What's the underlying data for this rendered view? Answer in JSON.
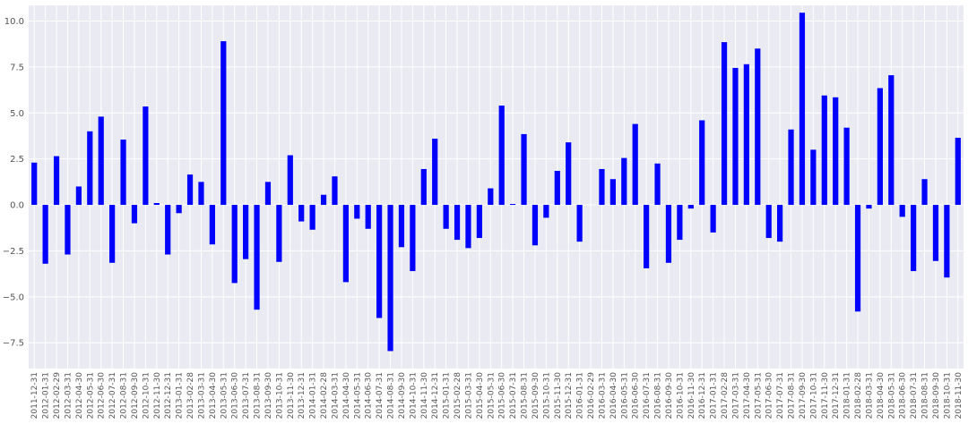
{
  "chart_data": {
    "type": "bar",
    "title": "",
    "xlabel": "",
    "ylabel": "",
    "ylim": [
      -8.9,
      10.85
    ],
    "yticks": [
      -7.5,
      -5.0,
      -2.5,
      0.0,
      2.5,
      5.0,
      7.5,
      10.0
    ],
    "ytick_labels": [
      "−7.5",
      "−5.0",
      "−2.5",
      "0.0",
      "2.5",
      "5.0",
      "7.5",
      "10.0"
    ],
    "grid": true,
    "colors": {
      "bar": "#0000ff",
      "background": "#eaeaf2",
      "grid": "#ffffff"
    },
    "categories": [
      "2011-12-31",
      "2012-01-31",
      "2012-02-29",
      "2012-03-31",
      "2012-04-30",
      "2012-05-31",
      "2012-06-30",
      "2012-07-31",
      "2012-08-31",
      "2012-09-30",
      "2012-10-31",
      "2012-11-30",
      "2012-12-31",
      "2013-01-31",
      "2013-02-28",
      "2013-03-31",
      "2013-04-30",
      "2013-05-31",
      "2013-06-30",
      "2013-07-31",
      "2013-08-31",
      "2013-09-30",
      "2013-10-31",
      "2013-11-30",
      "2013-12-31",
      "2014-01-31",
      "2014-02-28",
      "2014-03-31",
      "2014-04-30",
      "2014-05-31",
      "2014-06-30",
      "2014-07-31",
      "2014-08-31",
      "2014-09-30",
      "2014-10-31",
      "2014-11-30",
      "2014-12-31",
      "2015-01-31",
      "2015-02-28",
      "2015-03-31",
      "2015-04-30",
      "2015-05-31",
      "2015-06-30",
      "2015-07-31",
      "2015-08-31",
      "2015-09-30",
      "2015-10-31",
      "2015-11-30",
      "2015-12-31",
      "2016-01-31",
      "2016-02-29",
      "2016-03-31",
      "2016-04-30",
      "2016-05-31",
      "2016-06-30",
      "2016-07-31",
      "2016-08-31",
      "2016-09-30",
      "2016-10-31",
      "2016-11-30",
      "2016-12-31",
      "2017-01-31",
      "2017-02-28",
      "2017-03-31",
      "2017-04-30",
      "2017-05-31",
      "2017-06-30",
      "2017-07-31",
      "2017-08-31",
      "2017-09-30",
      "2017-10-31",
      "2017-11-30",
      "2017-12-31",
      "2018-01-31",
      "2018-02-28",
      "2018-03-31",
      "2018-04-30",
      "2018-05-31",
      "2018-06-30",
      "2018-07-31",
      "2018-08-31",
      "2018-09-30",
      "2018-10-31",
      "2018-11-30"
    ],
    "values": [
      2.3,
      -3.2,
      2.65,
      -2.7,
      1.0,
      4.0,
      4.8,
      -3.15,
      3.55,
      -1.0,
      5.35,
      0.1,
      -2.7,
      -0.45,
      1.65,
      1.25,
      -2.15,
      8.9,
      -4.25,
      -2.95,
      -5.7,
      1.25,
      -3.1,
      2.7,
      -0.9,
      -1.35,
      0.55,
      1.55,
      -4.2,
      -0.75,
      -1.3,
      -6.15,
      -7.95,
      -2.3,
      -3.6,
      1.95,
      3.6,
      -1.3,
      -1.9,
      -2.35,
      -1.8,
      0.9,
      5.4,
      0.05,
      3.85,
      -2.2,
      -0.7,
      1.85,
      3.4,
      -2.0,
      0.0,
      1.95,
      1.4,
      2.55,
      4.4,
      -3.45,
      2.25,
      -3.15,
      -1.9,
      -0.2,
      4.6,
      -1.5,
      8.85,
      7.45,
      7.65,
      8.5,
      -1.8,
      -2.0,
      4.1,
      10.45,
      3.0,
      5.95,
      5.85,
      4.2,
      -5.8,
      -0.2,
      6.35,
      7.05,
      -0.65,
      -3.6,
      1.4,
      -3.05,
      -3.95,
      3.65
    ]
  }
}
